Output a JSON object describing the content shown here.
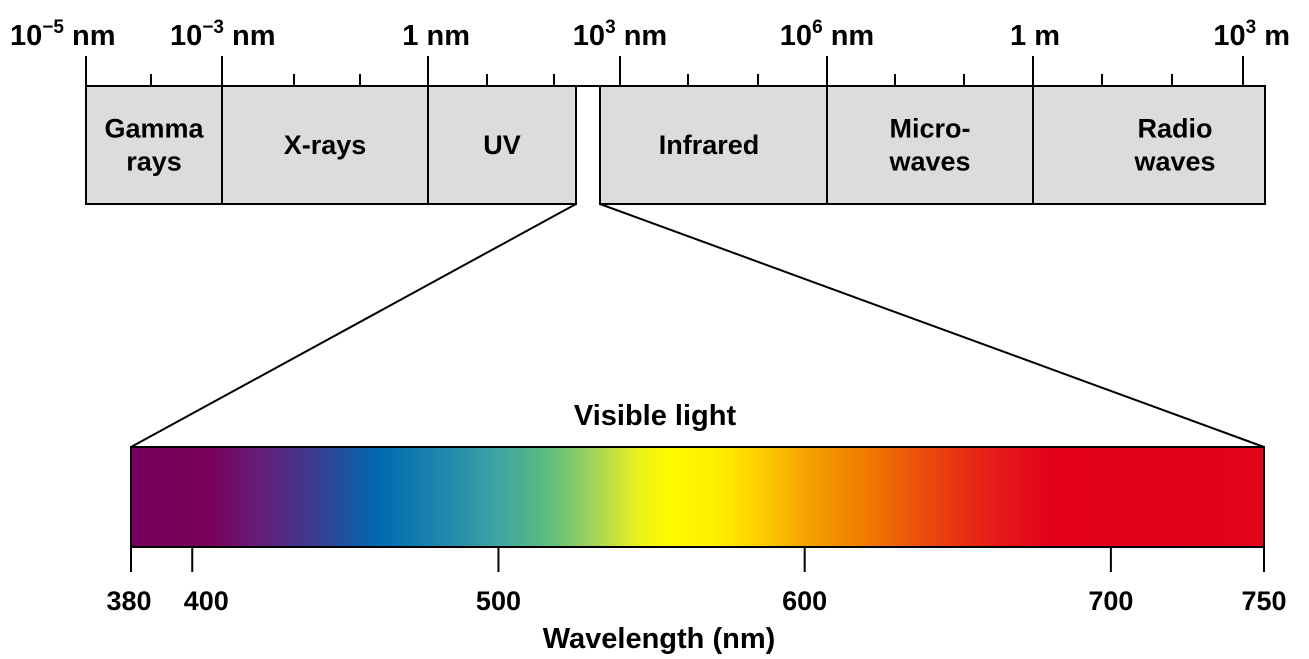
{
  "spectrum": {
    "scale_labels": [
      {
        "base": "10",
        "exp": "−5",
        "unit": " nm"
      },
      {
        "base": "10",
        "exp": "−3",
        "unit": " nm"
      },
      {
        "base": "1",
        "exp": "",
        "unit": " nm"
      },
      {
        "base": "10",
        "exp": "3",
        "unit": " nm"
      },
      {
        "base": "10",
        "exp": "6",
        "unit": " nm"
      },
      {
        "base": "1",
        "exp": "",
        "unit": " m"
      },
      {
        "base": "10",
        "exp": "3",
        "unit": " m"
      }
    ],
    "bands": [
      {
        "name": "gamma",
        "lines": [
          "Gamma",
          "rays"
        ]
      },
      {
        "name": "xray",
        "lines": [
          "X-rays"
        ]
      },
      {
        "name": "uv",
        "lines": [
          "UV"
        ]
      },
      {
        "name": "infrared",
        "lines": [
          "Infrared"
        ]
      },
      {
        "name": "microwaves",
        "lines": [
          "Micro-",
          "waves"
        ]
      },
      {
        "name": "radio",
        "lines": [
          "Radio",
          "waves"
        ]
      }
    ],
    "band_fill": "#dcdcdc"
  },
  "visible": {
    "title": "Visible light",
    "xlabel": "Wavelength (nm)",
    "range_nm": [
      380,
      750
    ],
    "ticks": [
      380,
      400,
      500,
      600,
      700,
      750
    ],
    "gradient": [
      {
        "nm": 380,
        "color": "#76005e"
      },
      {
        "nm": 405,
        "color": "#7a0058"
      },
      {
        "nm": 420,
        "color": "#6a1a78"
      },
      {
        "nm": 440,
        "color": "#3a3c92"
      },
      {
        "nm": 460,
        "color": "#0068b0"
      },
      {
        "nm": 480,
        "color": "#1c85ac"
      },
      {
        "nm": 500,
        "color": "#3ea4a4"
      },
      {
        "nm": 515,
        "color": "#58bb80"
      },
      {
        "nm": 530,
        "color": "#9cd25c"
      },
      {
        "nm": 545,
        "color": "#e8f020"
      },
      {
        "nm": 555,
        "color": "#fffa00"
      },
      {
        "nm": 570,
        "color": "#fff200"
      },
      {
        "nm": 585,
        "color": "#ffd000"
      },
      {
        "nm": 600,
        "color": "#f6a400"
      },
      {
        "nm": 620,
        "color": "#f07a00"
      },
      {
        "nm": 640,
        "color": "#ea4a0e"
      },
      {
        "nm": 660,
        "color": "#e61e16"
      },
      {
        "nm": 680,
        "color": "#e4001a"
      },
      {
        "nm": 750,
        "color": "#e20418"
      }
    ]
  }
}
